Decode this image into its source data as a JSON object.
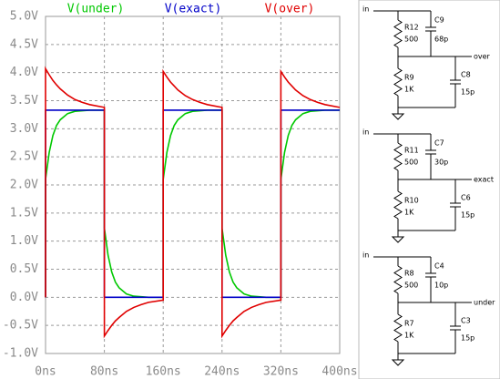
{
  "chart_data": {
    "type": "line",
    "x": [
      0,
      0,
      5,
      10,
      15,
      20,
      30,
      40,
      50,
      60,
      80,
      80,
      85,
      90,
      95,
      100,
      110,
      120,
      130,
      140,
      160,
      160,
      165,
      170,
      175,
      180,
      190,
      200,
      210,
      220,
      240,
      240,
      245,
      250,
      255,
      260,
      270,
      280,
      290,
      300,
      320,
      320,
      325,
      330,
      335,
      340,
      350,
      360,
      370,
      380,
      400
    ],
    "series": [
      {
        "name": "V(under)",
        "color": "#00c800",
        "values": [
          0,
          2.1,
          2.58,
          2.88,
          3.06,
          3.16,
          3.27,
          3.31,
          3.32,
          3.33,
          3.33,
          1.23,
          0.75,
          0.45,
          0.27,
          0.17,
          0.06,
          0.02,
          0.01,
          0,
          0,
          2.1,
          2.58,
          2.88,
          3.06,
          3.16,
          3.27,
          3.31,
          3.32,
          3.33,
          3.33,
          1.23,
          0.75,
          0.45,
          0.27,
          0.17,
          0.06,
          0.02,
          0.01,
          0,
          0,
          2.1,
          2.58,
          2.88,
          3.06,
          3.16,
          3.27,
          3.31,
          3.32,
          3.33,
          3.33
        ]
      },
      {
        "name": "V(exact)",
        "color": "#0000c8",
        "values": [
          0,
          3.33,
          3.33,
          3.33,
          3.33,
          3.33,
          3.33,
          3.33,
          3.33,
          3.33,
          3.33,
          0,
          0,
          0,
          0,
          0,
          0,
          0,
          0,
          0,
          0,
          3.33,
          3.33,
          3.33,
          3.33,
          3.33,
          3.33,
          3.33,
          3.33,
          3.33,
          3.33,
          0,
          0,
          0,
          0,
          0,
          0,
          0,
          0,
          0,
          0,
          3.33,
          3.33,
          3.33,
          3.33,
          3.33,
          3.33,
          3.33,
          3.33,
          3.33,
          3.33
        ]
      },
      {
        "name": "V(over)",
        "color": "#e00000",
        "values": [
          0,
          4.07,
          3.96,
          3.86,
          3.78,
          3.71,
          3.6,
          3.52,
          3.47,
          3.43,
          3.38,
          -0.69,
          -0.59,
          -0.5,
          -0.42,
          -0.36,
          -0.25,
          -0.18,
          -0.13,
          -0.09,
          -0.05,
          4.02,
          3.92,
          3.83,
          3.76,
          3.69,
          3.59,
          3.52,
          3.47,
          3.43,
          3.38,
          -0.69,
          -0.59,
          -0.5,
          -0.42,
          -0.36,
          -0.25,
          -0.18,
          -0.13,
          -0.09,
          -0.05,
          4.02,
          3.92,
          3.83,
          3.76,
          3.69,
          3.59,
          3.52,
          3.47,
          3.43,
          3.38
        ]
      }
    ],
    "xlim": [
      0,
      400
    ],
    "xticks": [
      {
        "value": 0,
        "label": "0ns"
      },
      {
        "value": 80,
        "label": "80ns"
      },
      {
        "value": 160,
        "label": "160ns"
      },
      {
        "value": 240,
        "label": "240ns"
      },
      {
        "value": 320,
        "label": "320ns"
      },
      {
        "value": 400,
        "label": "400ns"
      }
    ],
    "ylim": [
      -1.0,
      5.0
    ],
    "yticks": [
      {
        "value": 5.0,
        "label": "5.0V"
      },
      {
        "value": 4.5,
        "label": "4.5V"
      },
      {
        "value": 4.0,
        "label": "4.0V"
      },
      {
        "value": 3.5,
        "label": "3.5V"
      },
      {
        "value": 3.0,
        "label": "3.0V"
      },
      {
        "value": 2.5,
        "label": "2.5V"
      },
      {
        "value": 2.0,
        "label": "2.0V"
      },
      {
        "value": 1.5,
        "label": "1.5V"
      },
      {
        "value": 1.0,
        "label": "1.0V"
      },
      {
        "value": 0.5,
        "label": "0.5V"
      },
      {
        "value": 0.0,
        "label": "0.0V"
      },
      {
        "value": -0.5,
        "label": "-0.5V"
      },
      {
        "value": -1.0,
        "label": "-1.0V"
      }
    ],
    "grid": true
  },
  "schematic": {
    "circuits": [
      {
        "input": "in",
        "r_top": "R12",
        "r_top_value": "500",
        "c_top": "C9",
        "c_top_value": "68p",
        "r_bottom": "R9",
        "r_bottom_value": "1K",
        "c_bottom": "C8",
        "c_bottom_value": "15p",
        "output": "over"
      },
      {
        "input": "in",
        "r_top": "R11",
        "r_top_value": "500",
        "c_top": "C7",
        "c_top_value": "30p",
        "r_bottom": "R10",
        "r_bottom_value": "1K",
        "c_bottom": "C6",
        "c_bottom_value": "15p",
        "output": "exact"
      },
      {
        "input": "in",
        "r_top": "R8",
        "r_top_value": "500",
        "c_top": "C4",
        "c_top_value": "10p",
        "r_bottom": "R7",
        "r_bottom_value": "1K",
        "c_bottom": "C3",
        "c_bottom_value": "15p",
        "output": "under"
      }
    ]
  }
}
